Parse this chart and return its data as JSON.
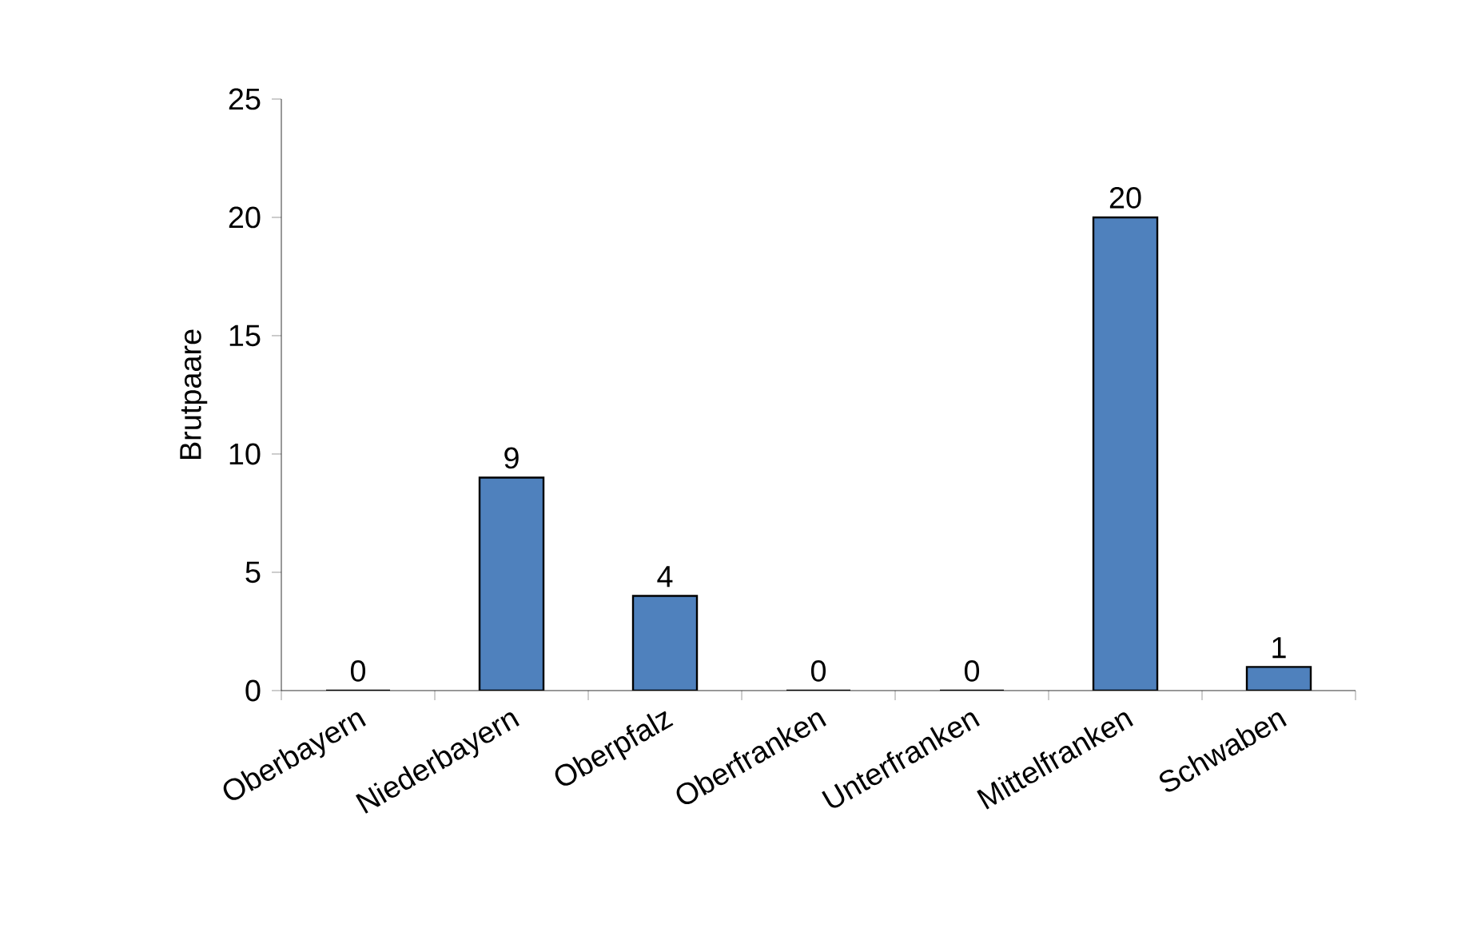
{
  "chart_data": {
    "type": "bar",
    "ylabel": "Brutpaare",
    "categories": [
      "Oberbayern",
      "Niederbayern",
      "Oberpfalz",
      "Oberfranken",
      "Unterfranken",
      "Mittelfranken",
      "Schwaben"
    ],
    "values": [
      0,
      9,
      4,
      0,
      0,
      20,
      1
    ],
    "color": "#4f81bd",
    "ylim": [
      0,
      25
    ],
    "yticks": [
      0,
      5,
      10,
      15,
      20,
      25
    ],
    "data_labels": true
  }
}
